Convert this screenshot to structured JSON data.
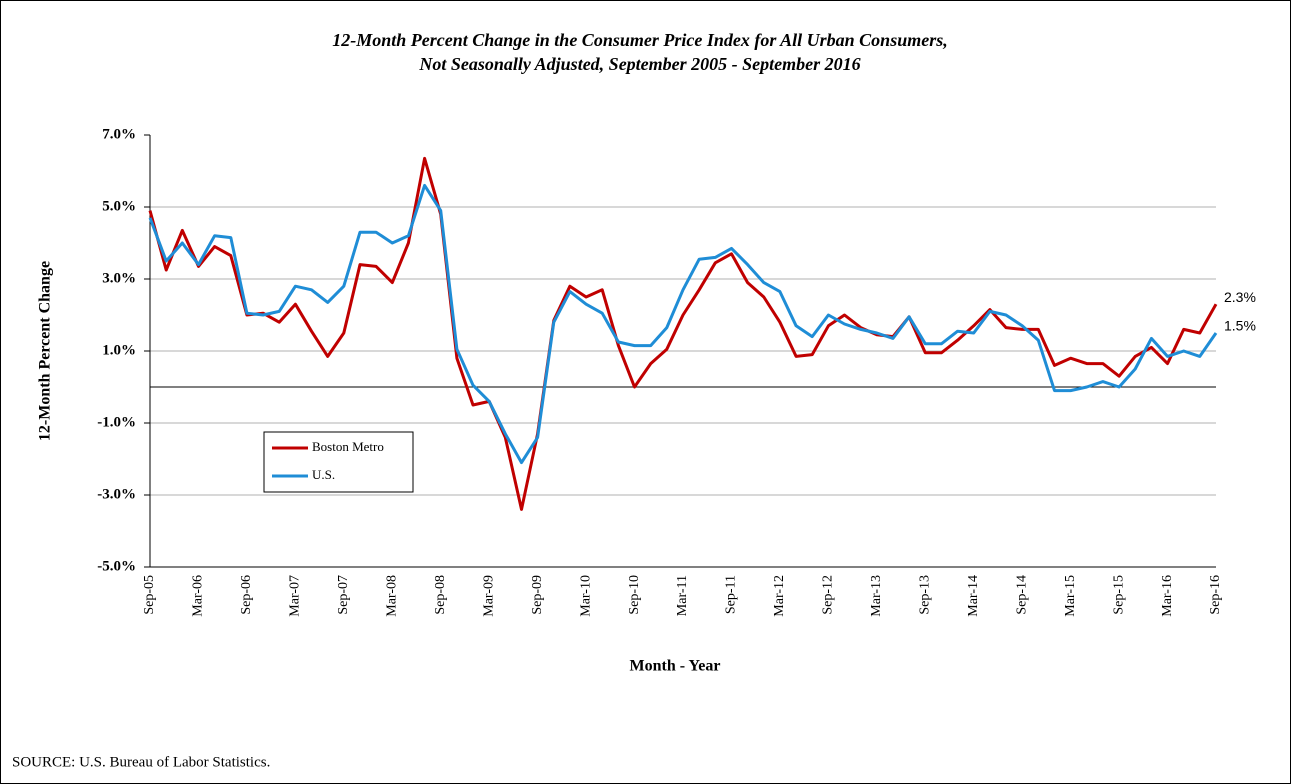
{
  "chart_data": {
    "type": "line",
    "title": "12-Month Percent Change in the Consumer Price Index for All Urban Consumers,",
    "subtitle": "Not Seasonally Adjusted, September 2005 - September 2016",
    "x_label": "Month - Year",
    "y_label": "12-Month Percent Change",
    "source": "SOURCE:  U.S. Bureau of Labor Statistics.",
    "categories": [
      "Sep-05",
      null,
      null,
      "Mar-06",
      null,
      null,
      "Sep-06",
      null,
      null,
      "Mar-07",
      null,
      null,
      "Sep-07",
      null,
      null,
      "Mar-08",
      null,
      null,
      "Sep-08",
      null,
      null,
      "Mar-09",
      null,
      null,
      "Sep-09",
      null,
      null,
      "Mar-10",
      null,
      null,
      "Sep-10",
      null,
      null,
      "Mar-11",
      null,
      null,
      "Sep-11",
      null,
      null,
      "Mar-12",
      null,
      null,
      "Sep-12",
      null,
      null,
      "Mar-13",
      null,
      null,
      "Sep-13",
      null,
      null,
      "Mar-14",
      null,
      null,
      "Sep-14",
      null,
      null,
      "Mar-15",
      null,
      null,
      "Sep-15",
      null,
      null,
      "Mar-16",
      null,
      null,
      "Sep-16"
    ],
    "series": [
      {
        "name": "Boston Metro",
        "color": "#c00000",
        "end_label": "2.3%",
        "values": [
          4.9,
          3.25,
          4.35,
          3.35,
          3.9,
          3.65,
          2.0,
          2.05,
          1.8,
          2.3,
          1.55,
          0.85,
          1.5,
          3.4,
          3.35,
          2.9,
          4.0,
          6.35,
          4.8,
          0.8,
          -0.5,
          -0.4,
          -1.4,
          -3.4,
          -1.3,
          1.85,
          2.8,
          2.5,
          2.7,
          1.15,
          0.0,
          0.65,
          1.05,
          2.0,
          2.7,
          3.45,
          3.7,
          2.9,
          2.5,
          1.8,
          0.85,
          0.9,
          1.7,
          2.0,
          1.65,
          1.45,
          1.4,
          1.95,
          0.95,
          0.95,
          1.3,
          1.7,
          2.15,
          1.65,
          1.6,
          1.6,
          0.6,
          0.8,
          0.65,
          0.65,
          0.3,
          0.85,
          1.1,
          0.65,
          1.6,
          1.5,
          2.3
        ]
      },
      {
        "name": "U.S.",
        "color": "#1f8dd6",
        "end_label": "1.5%",
        "values": [
          4.7,
          3.5,
          4.0,
          3.4,
          4.2,
          4.15,
          2.05,
          2.0,
          2.1,
          2.8,
          2.7,
          2.35,
          2.8,
          4.3,
          4.3,
          4.0,
          4.2,
          5.6,
          4.9,
          1.05,
          0.05,
          -0.4,
          -1.3,
          -2.1,
          -1.4,
          1.8,
          2.65,
          2.3,
          2.05,
          1.25,
          1.15,
          1.15,
          1.65,
          2.7,
          3.55,
          3.6,
          3.85,
          3.4,
          2.9,
          2.65,
          1.7,
          1.4,
          2.0,
          1.75,
          1.6,
          1.5,
          1.35,
          1.95,
          1.2,
          1.2,
          1.55,
          1.5,
          2.1,
          2.0,
          1.7,
          1.3,
          -0.1,
          -0.1,
          0.0,
          0.15,
          0.0,
          0.5,
          1.35,
          0.85,
          1.0,
          0.85,
          1.5
        ]
      }
    ],
    "ylim": [
      -5,
      7
    ],
    "yticks": [
      {
        "value": 7,
        "label": "7.0%"
      },
      {
        "value": 5,
        "label": "5.0%"
      },
      {
        "value": 3,
        "label": "3.0%"
      },
      {
        "value": 1,
        "label": "1.0%"
      },
      {
        "value": -1,
        "label": "-1.0%"
      },
      {
        "value": -3,
        "label": "-3.0%"
      },
      {
        "value": -5,
        "label": "-5.0%"
      }
    ],
    "grid": true,
    "legend": "lower left"
  }
}
